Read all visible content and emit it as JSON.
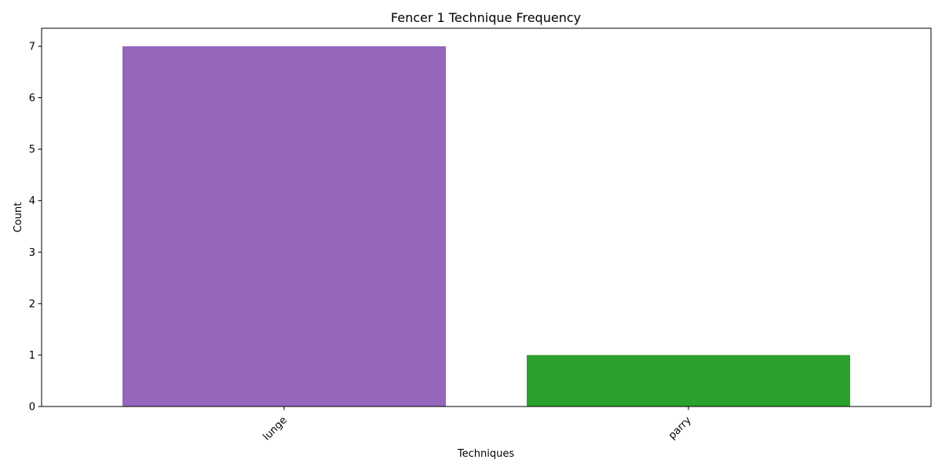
{
  "chart_data": {
    "type": "bar",
    "title": "Fencer 1 Technique Frequency",
    "xlabel": "Techniques",
    "ylabel": "Count",
    "categories": [
      "lunge",
      "parry"
    ],
    "values": [
      7,
      1
    ],
    "colors": [
      "#9467bd",
      "#2ca02c"
    ],
    "ylim": [
      0,
      7.35
    ],
    "yticks": [
      0,
      1,
      2,
      3,
      4,
      5,
      6,
      7
    ],
    "x_tick_rotation_deg": 45,
    "grid": false,
    "legend": "none"
  }
}
